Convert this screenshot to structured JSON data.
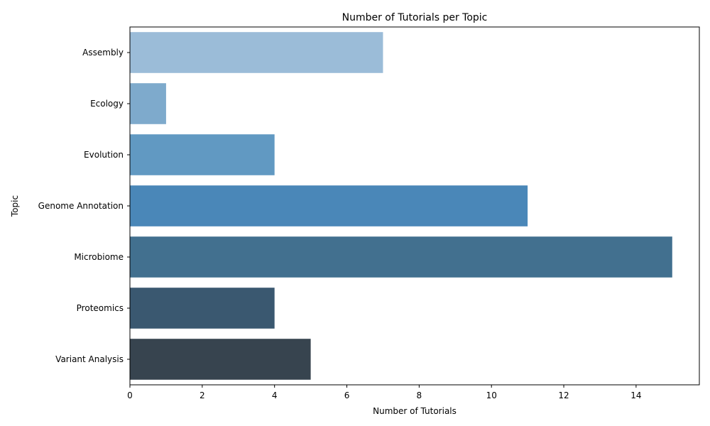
{
  "chart_data": {
    "type": "bar",
    "orientation": "horizontal",
    "title": "Number of Tutorials per Topic",
    "xlabel": "Number of Tutorials",
    "ylabel": "Topic",
    "categories": [
      "Assembly",
      "Ecology",
      "Evolution",
      "Genome Annotation",
      "Microbiome",
      "Proteomics",
      "Variant Analysis"
    ],
    "values": [
      7,
      1,
      4,
      11,
      15,
      4,
      5
    ],
    "colors": [
      "#9bbcd8",
      "#7eaacc",
      "#6199c2",
      "#4a87b8",
      "#42708f",
      "#3a5870",
      "#37444f"
    ],
    "xlim": [
      0,
      15.75
    ],
    "xticks": [
      0,
      2,
      4,
      6,
      8,
      10,
      12,
      14
    ],
    "grid": false,
    "legend": "none"
  }
}
